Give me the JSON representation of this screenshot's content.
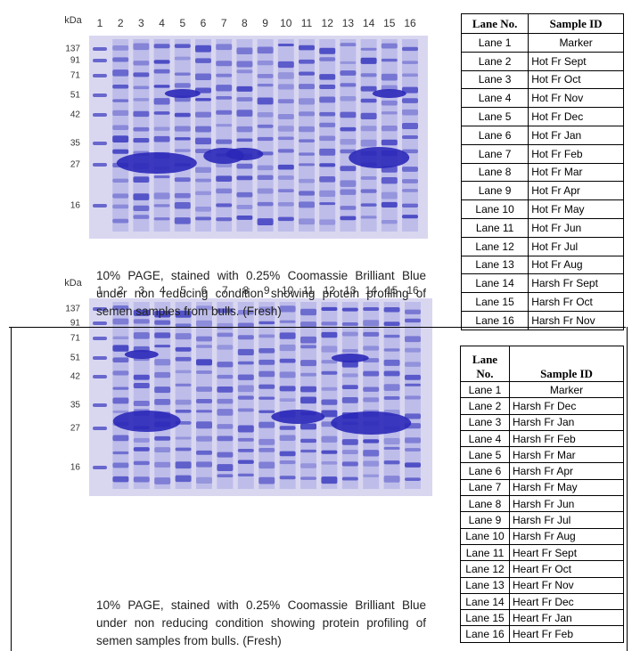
{
  "panels": [
    {
      "gel": {
        "unit": "kDa",
        "lanes": [
          "1",
          "2",
          "3",
          "4",
          "5",
          "6",
          "7",
          "8",
          "9",
          "10",
          "11",
          "12",
          "13",
          "14",
          "15",
          "16"
        ],
        "markers": [
          "137",
          "91",
          "71",
          "51",
          "42",
          "35",
          "27",
          "16"
        ]
      },
      "caption": "10% PAGE, stained with 0.25% Coomassie Brilliant Blue under non reducing condition showing protein profiling of semen samples from bulls. (Fresh)",
      "table": {
        "header": [
          "Lane No.",
          "Sample ID"
        ],
        "rows": [
          [
            "Lane 1",
            "Marker"
          ],
          [
            "Lane 2",
            "Hot Fr Sept"
          ],
          [
            "Lane 3",
            "Hot Fr Oct"
          ],
          [
            "Lane 4",
            "Hot Fr Nov"
          ],
          [
            "Lane 5",
            "Hot Fr Dec"
          ],
          [
            "Lane 6",
            "Hot Fr Jan"
          ],
          [
            "Lane 7",
            "Hot Fr Feb"
          ],
          [
            "Lane 8",
            "Hot Fr Mar"
          ],
          [
            "Lane 9",
            "Hot Fr Apr"
          ],
          [
            "Lane 10",
            "Hot Fr May"
          ],
          [
            "Lane 11",
            "Hot Fr Jun"
          ],
          [
            "Lane 12",
            "Hot Fr Jul"
          ],
          [
            "Lane 13",
            "Hot Fr Aug"
          ],
          [
            "Lane 14",
            "Harsh Fr Sept"
          ],
          [
            "Lane 15",
            "Harsh Fr Oct"
          ],
          [
            "Lane 16",
            "Harsh Fr Nov"
          ]
        ]
      }
    },
    {
      "gel": {
        "unit": "kDa",
        "lanes": [
          "1",
          "2",
          "3",
          "4",
          "5",
          "6",
          "7",
          "8",
          "9",
          "10",
          "11",
          "12",
          "13",
          "14",
          "15",
          "16"
        ],
        "markers": [
          "137",
          "91",
          "71",
          "51",
          "42",
          "35",
          "27",
          "16"
        ]
      },
      "caption": "10% PAGE, stained with 0.25% Coomassie Brilliant Blue under non reducing condition showing protein profiling of semen samples from bulls. (Fresh)",
      "table": {
        "header": [
          "Lane No.",
          "Sample ID"
        ],
        "rows": [
          [
            "Lane 1",
            "Marker"
          ],
          [
            "Lane 2",
            "Harsh Fr Dec"
          ],
          [
            "Lane 3",
            "Harsh Fr Jan"
          ],
          [
            "Lane 4",
            "Harsh Fr Feb"
          ],
          [
            "Lane 5",
            "Harsh Fr Mar"
          ],
          [
            "Lane 6",
            "Harsh Fr Apr"
          ],
          [
            "Lane 7",
            "Harsh Fr May"
          ],
          [
            "Lane 8",
            "Harsh Fr Jun"
          ],
          [
            "Lane 9",
            "Harsh Fr Jul"
          ],
          [
            "Lane 10",
            "Harsh Fr Aug"
          ],
          [
            "Lane 11",
            "Heart Fr Sept"
          ],
          [
            "Lane 12",
            "Heart Fr Oct"
          ],
          [
            "Lane 13",
            "Heart Fr Nov"
          ],
          [
            "Lane 14",
            "Heart Fr Dec"
          ],
          [
            "Lane 15",
            "Heart Fr Jan"
          ],
          [
            "Lane 16",
            "Heart Fr Feb"
          ]
        ]
      }
    }
  ]
}
